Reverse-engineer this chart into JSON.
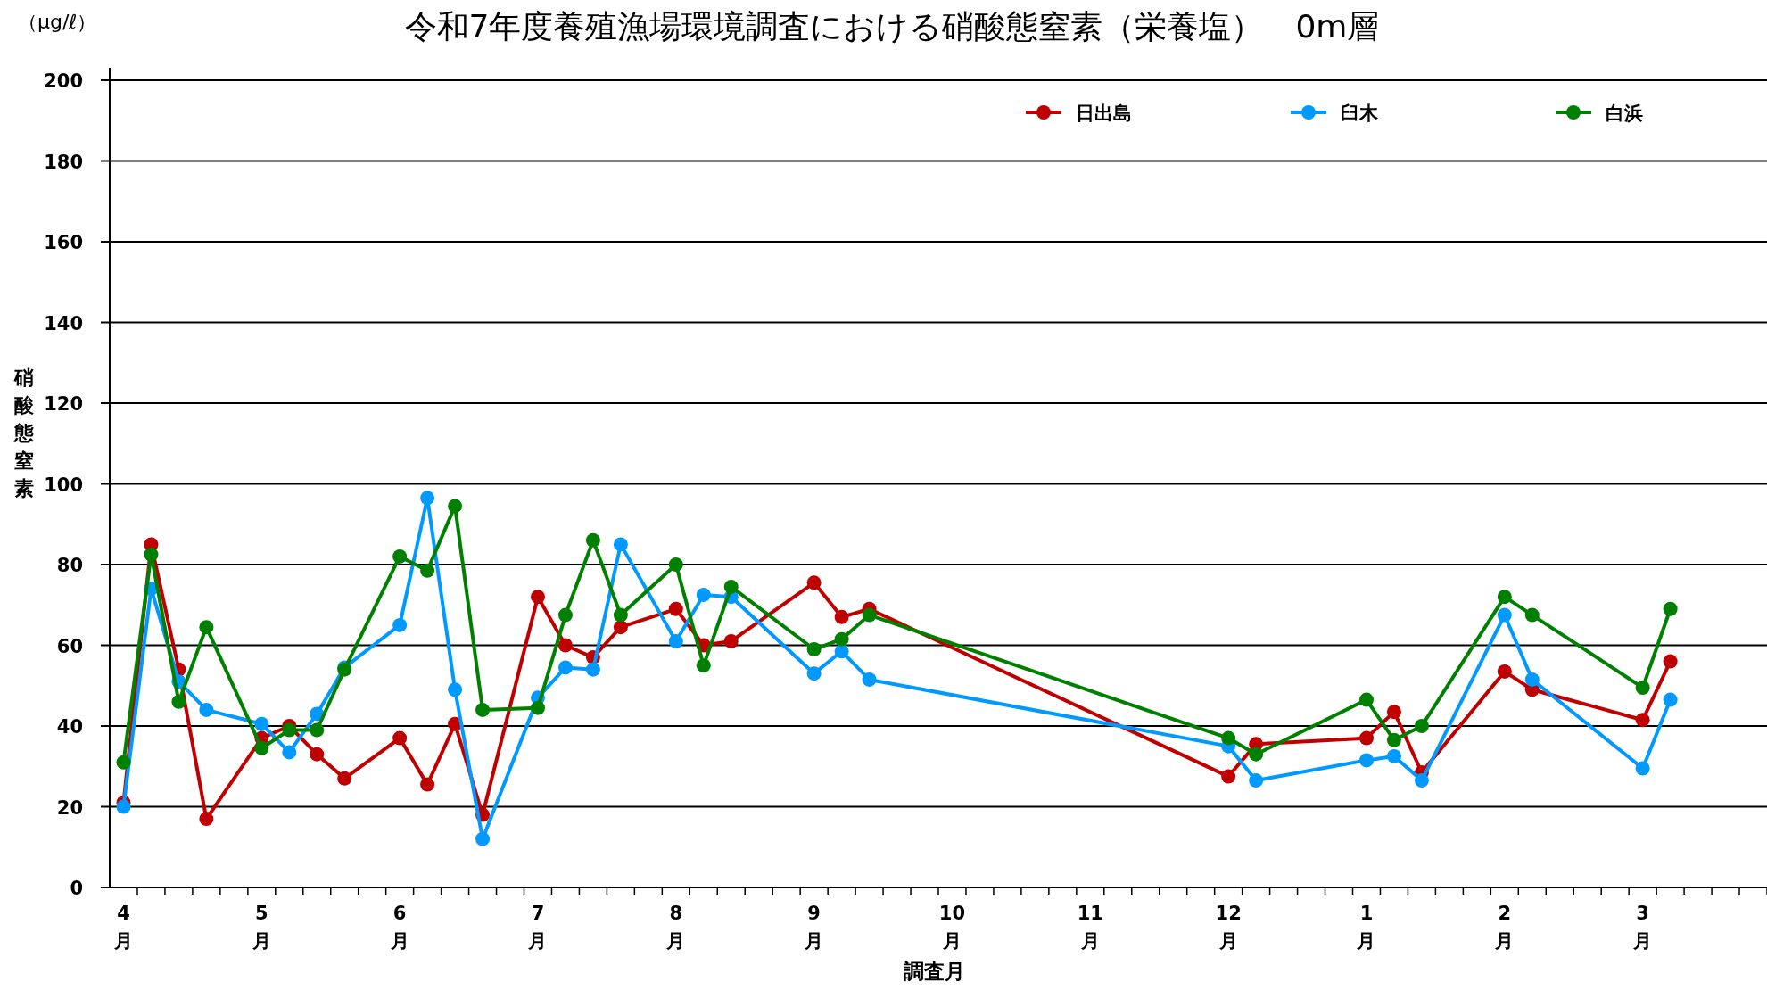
{
  "chart_data": {
    "type": "line",
    "title": "令和7年度養殖漁場環境調査における硝酸態窒素（栄養塩）　0m層",
    "xlabel": "調査月",
    "ylabel": "硝酸態窒素",
    "annotations": [
      "（μg/ℓ）"
    ],
    "categories": [
      "4月",
      null,
      null,
      null,
      null,
      "5月",
      null,
      null,
      null,
      null,
      "6月",
      null,
      null,
      null,
      null,
      "7月",
      null,
      null,
      null,
      null,
      "8月",
      null,
      null,
      null,
      null,
      "9月",
      null,
      null,
      null,
      null,
      "10月",
      null,
      null,
      null,
      null,
      "11月",
      null,
      null,
      null,
      null,
      "12月",
      null,
      null,
      null,
      null,
      "1月",
      null,
      null,
      null,
      null,
      "2月",
      null,
      null,
      null,
      null,
      "3月",
      null,
      null,
      null,
      null
    ],
    "series": [
      {
        "name": "日出島",
        "color": "#c00000",
        "values": [
          21,
          85,
          54,
          17,
          null,
          37,
          40,
          33,
          27,
          null,
          37,
          25.5,
          40.5,
          18,
          null,
          72,
          60,
          57,
          64.5,
          null,
          69,
          60,
          61,
          null,
          null,
          75.5,
          67,
          69,
          null,
          null,
          null,
          null,
          null,
          null,
          null,
          null,
          null,
          null,
          null,
          null,
          27.5,
          35.5,
          null,
          null,
          null,
          37,
          43.5,
          28.5,
          null,
          null,
          53.5,
          49,
          null,
          null,
          null,
          41.5,
          56,
          null,
          null,
          null
        ]
      },
      {
        "name": "臼木",
        "color": "#0099ff",
        "values": [
          20,
          74,
          51,
          44,
          null,
          40.5,
          33.5,
          43,
          54.5,
          null,
          65,
          96.5,
          49,
          12,
          null,
          47,
          54.5,
          54,
          85,
          null,
          61,
          72.5,
          72,
          null,
          null,
          53,
          58.5,
          51.5,
          null,
          null,
          null,
          null,
          null,
          null,
          null,
          null,
          null,
          null,
          null,
          null,
          35,
          26.5,
          null,
          null,
          null,
          31.5,
          32.5,
          26.5,
          null,
          null,
          67.5,
          51.5,
          null,
          null,
          null,
          29.5,
          46.5,
          null,
          null,
          null
        ]
      },
      {
        "name": "白浜",
        "color": "#008000",
        "values": [
          31,
          82.5,
          46,
          64.5,
          null,
          34.5,
          39,
          39,
          54,
          null,
          82,
          78.5,
          94.5,
          44,
          null,
          44.5,
          67.5,
          86,
          67.5,
          null,
          80,
          55,
          74.5,
          null,
          null,
          59,
          61.5,
          67.5,
          null,
          null,
          null,
          null,
          null,
          null,
          null,
          null,
          null,
          null,
          null,
          null,
          37,
          33,
          null,
          null,
          null,
          46.5,
          36.5,
          40,
          null,
          null,
          72,
          67.5,
          null,
          null,
          null,
          49.5,
          69,
          null,
          null,
          null
        ]
      }
    ],
    "ylim": [
      0,
      200
    ],
    "yticks": [
      0,
      20,
      40,
      60,
      80,
      100,
      120,
      140,
      160,
      180,
      200
    ],
    "grid": "y",
    "legend": "top right",
    "marker": "circle",
    "line_style": "solid"
  }
}
